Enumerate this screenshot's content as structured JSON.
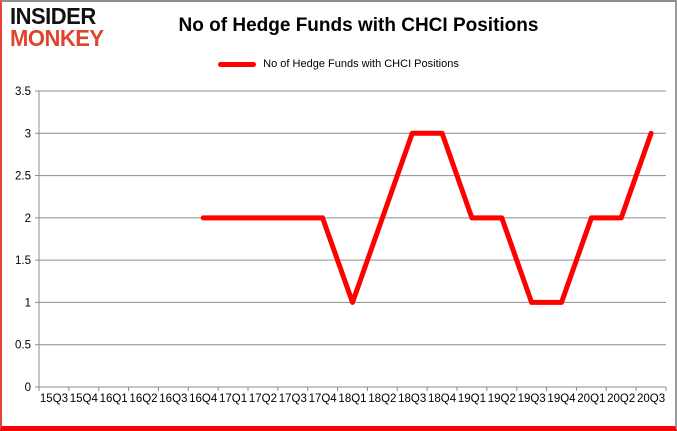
{
  "logo": {
    "line1": "INSIDER",
    "line2": "MONKEY",
    "line2_color": "#e0442e"
  },
  "header": {
    "title": "No of Hedge Funds with CHCI Positions"
  },
  "legend": {
    "label": "No of Hedge Funds with CHCI Positions",
    "color": "#ff0000"
  },
  "chart_data": {
    "type": "line",
    "title": "No of Hedge Funds with CHCI Positions",
    "categories": [
      "15Q3",
      "15Q4",
      "16Q1",
      "16Q2",
      "16Q3",
      "16Q4",
      "17Q1",
      "17Q2",
      "17Q3",
      "17Q4",
      "18Q1",
      "18Q2",
      "18Q3",
      "18Q4",
      "19Q1",
      "19Q2",
      "19Q3",
      "19Q4",
      "20Q1",
      "20Q2",
      "20Q3"
    ],
    "series": [
      {
        "name": "No of Hedge Funds with CHCI Positions",
        "color": "#ff0000",
        "values": [
          null,
          null,
          null,
          null,
          null,
          2,
          2,
          2,
          2,
          2,
          1,
          2,
          3,
          3,
          2,
          2,
          1,
          1,
          2,
          2,
          3
        ]
      }
    ],
    "xlabel": "",
    "ylabel": "",
    "ylim": [
      0,
      3.5
    ],
    "yticks": [
      0,
      0.5,
      1,
      1.5,
      2,
      2.5,
      3,
      3.5
    ],
    "grid": true,
    "legend_position": "top",
    "gridline_color": "#8c8c8c",
    "axis_color": "#8c8c8c",
    "tick_label_color": "#000000"
  }
}
